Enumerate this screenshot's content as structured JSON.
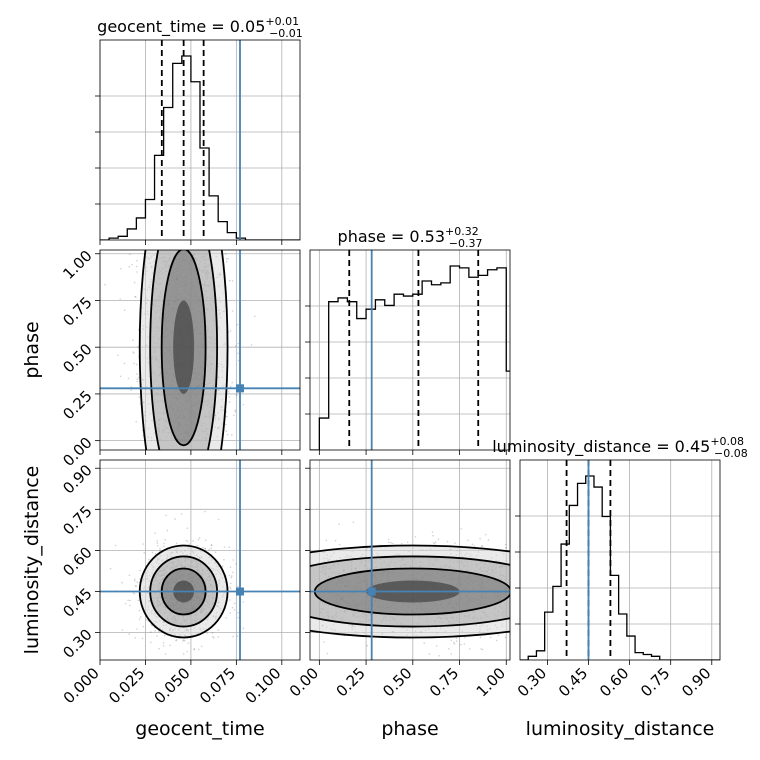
{
  "chart_data": {
    "type": "corner",
    "parameters": [
      {
        "key": "geocent_time",
        "label": "geocent_time",
        "range": [
          0.0,
          0.11
        ],
        "ticks": [
          0.0,
          0.025,
          0.05,
          0.075,
          0.1
        ],
        "tick_labels": [
          "0.000",
          "0.025",
          "0.050",
          "0.075",
          "0.100"
        ],
        "truth": 0.077,
        "median": 0.046,
        "lower": 0.034,
        "upper": 0.057,
        "title_main": "geocent_time = 0.05",
        "title_plus": "+0.01",
        "title_minus": "−0.01",
        "hist_edges": [
          0.0,
          0.005,
          0.01,
          0.015,
          0.02,
          0.025,
          0.03,
          0.035,
          0.04,
          0.045,
          0.05,
          0.055,
          0.06,
          0.065,
          0.07,
          0.075,
          0.08,
          0.085,
          0.09,
          0.095,
          0.1,
          0.105,
          0.11
        ],
        "hist_counts": [
          0.0,
          0.01,
          0.02,
          0.06,
          0.12,
          0.22,
          0.46,
          0.72,
          0.96,
          1.0,
          0.86,
          0.5,
          0.24,
          0.1,
          0.04,
          0.01,
          0.0,
          0.0,
          0.0,
          0.0,
          0.0,
          0.0
        ]
      },
      {
        "key": "phase",
        "label": "phase",
        "range": [
          -0.05,
          1.02
        ],
        "ticks": [
          0.0,
          0.25,
          0.5,
          0.75,
          1.0
        ],
        "tick_labels": [
          "0.00",
          "0.25",
          "0.50",
          "0.75",
          "1.00"
        ],
        "truth": 0.28,
        "median": 0.53,
        "lower": 0.16,
        "upper": 0.85,
        "title_main": "phase = 0.53",
        "title_plus": "+0.32",
        "title_minus": "−0.37",
        "hist_edges": [
          -0.05,
          0.0,
          0.05,
          0.1,
          0.15,
          0.2,
          0.25,
          0.3,
          0.35,
          0.4,
          0.45,
          0.5,
          0.55,
          0.6,
          0.65,
          0.7,
          0.75,
          0.8,
          0.85,
          0.9,
          0.95,
          1.0,
          1.02
        ],
        "hist_counts": [
          0.0,
          0.17,
          0.79,
          0.81,
          0.79,
          0.7,
          0.75,
          0.8,
          0.77,
          0.83,
          0.82,
          0.83,
          0.9,
          0.88,
          0.89,
          0.98,
          0.97,
          0.92,
          0.93,
          0.96,
          0.97,
          0.42
        ]
      },
      {
        "key": "luminosity_distance",
        "label": "luminosity_distance",
        "range": [
          0.2,
          0.93
        ],
        "ticks": [
          0.3,
          0.45,
          0.6,
          0.75,
          0.9
        ],
        "tick_labels": [
          "0.30",
          "0.45",
          "0.60",
          "0.75",
          "0.90"
        ],
        "truth": 0.45,
        "median": 0.45,
        "lower": 0.37,
        "upper": 0.53,
        "title_main": "luminosity_distance = 0.45",
        "title_plus": "+0.08",
        "title_minus": "−0.08",
        "hist_edges": [
          0.2,
          0.23,
          0.26,
          0.29,
          0.32,
          0.35,
          0.38,
          0.41,
          0.44,
          0.47,
          0.5,
          0.53,
          0.56,
          0.59,
          0.62,
          0.65,
          0.68,
          0.71,
          0.74,
          0.77,
          0.8,
          0.83,
          0.86,
          0.89,
          0.93
        ],
        "hist_counts": [
          0.0,
          0.02,
          0.05,
          0.26,
          0.4,
          0.63,
          0.84,
          0.96,
          1.0,
          0.94,
          0.78,
          0.46,
          0.25,
          0.13,
          0.04,
          0.03,
          0.02,
          0.0,
          0.0,
          0.0,
          0.0,
          0.0,
          0.0,
          0.0
        ]
      }
    ],
    "contour_levels": 4,
    "grid": true,
    "colors": {
      "truth": "#4682b4",
      "contour": "#000000",
      "hist": "#000000",
      "grid": "#b0b0b0"
    }
  }
}
